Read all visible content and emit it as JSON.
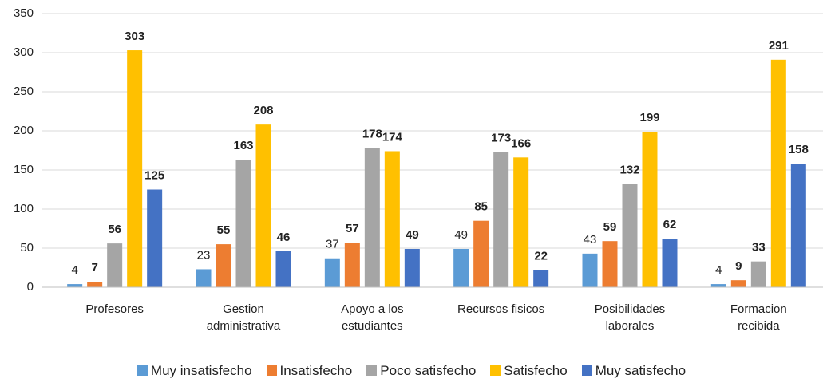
{
  "chart_data": {
    "type": "bar",
    "categories": [
      "Profesores",
      "Gestion administrativa",
      "Apoyo a los estudiantes",
      "Recursos fisicos",
      "Posibilidades laborales",
      "Formacion recibida"
    ],
    "series": [
      {
        "name": "Muy insatisfecho",
        "color": "#5b9bd5",
        "values": [
          4,
          23,
          37,
          49,
          43,
          4
        ]
      },
      {
        "name": "Insatisfecho",
        "color": "#ed7d31",
        "values": [
          7,
          55,
          57,
          85,
          59,
          9
        ]
      },
      {
        "name": "Poco satisfecho",
        "color": "#a5a5a5",
        "values": [
          56,
          163,
          178,
          173,
          132,
          33
        ]
      },
      {
        "name": "Satisfecho",
        "color": "#ffc000",
        "values": [
          303,
          208,
          174,
          166,
          199,
          291
        ]
      },
      {
        "name": "Muy satisfecho",
        "color": "#4472c4",
        "values": [
          125,
          46,
          49,
          22,
          62,
          158
        ]
      }
    ],
    "ylim": [
      0,
      350
    ],
    "yticks": [
      0,
      50,
      100,
      150,
      200,
      250,
      300,
      350
    ],
    "grid": true,
    "legend": "bottom"
  }
}
